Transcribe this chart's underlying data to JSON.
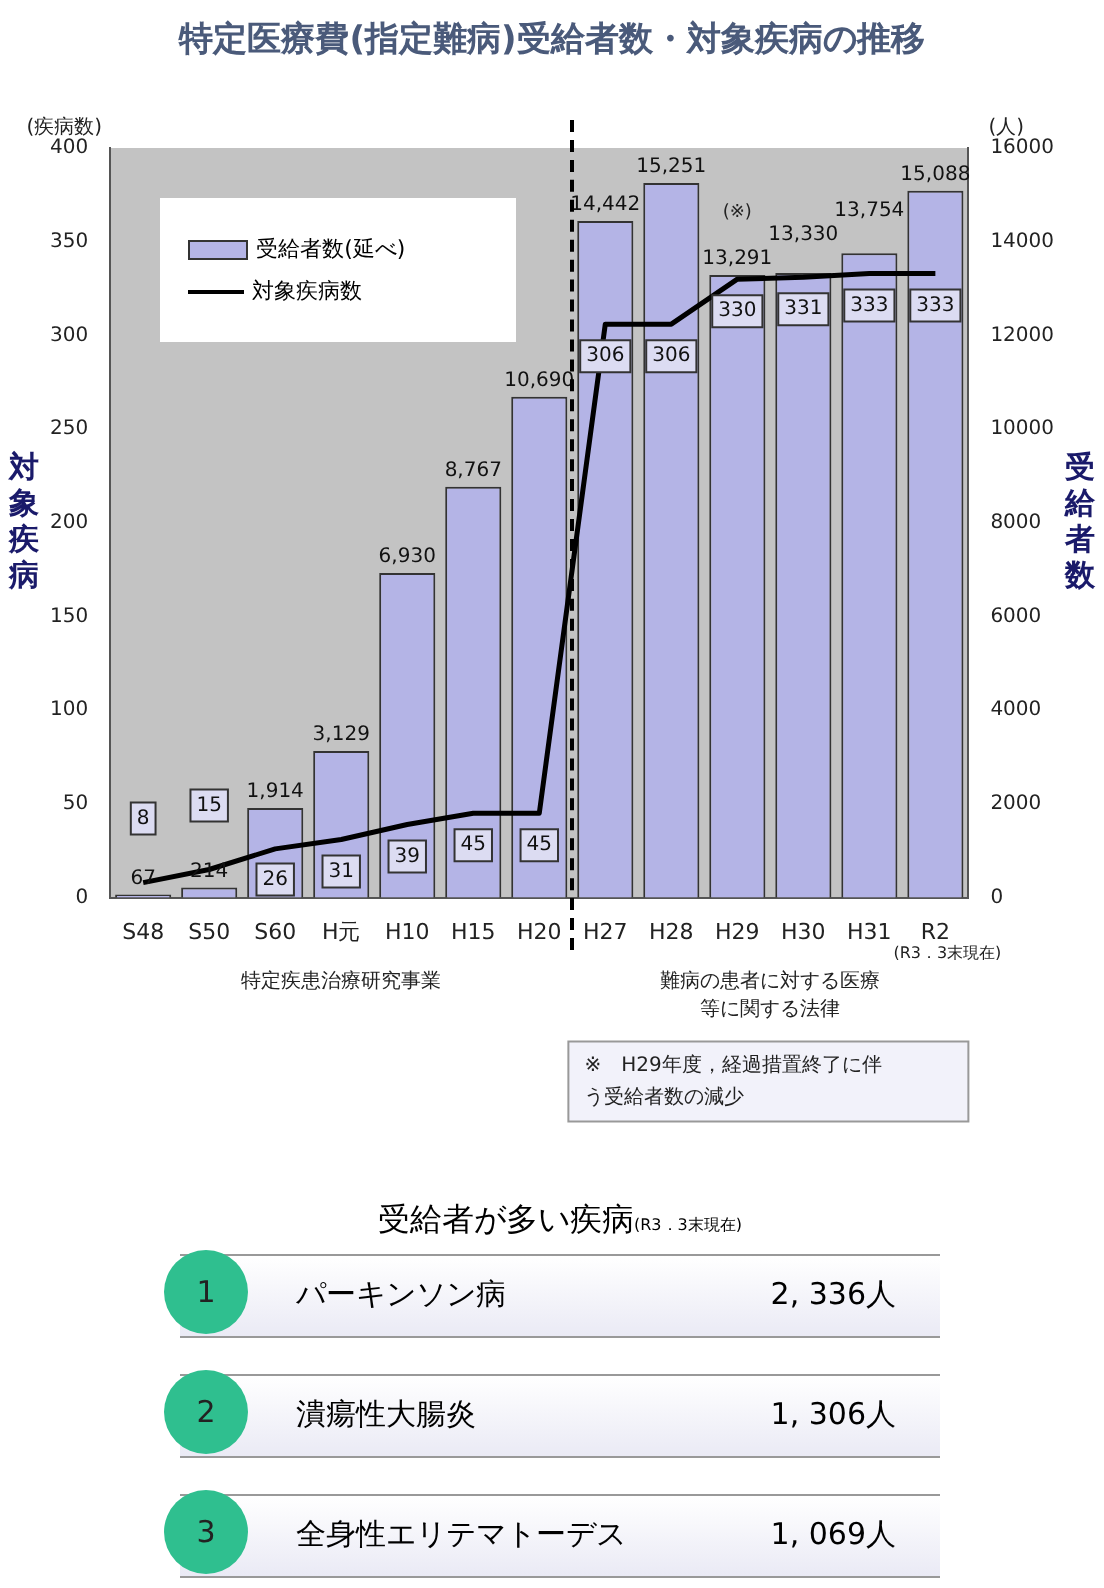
{
  "chart_data": [
    {
      "type": "bar",
      "title": "特定医療費(指定難病)受給者数・対象疾病の推移",
      "ylabel": "対象疾病",
      "y2label": "受給者数",
      "categories": [
        "S48",
        "S50",
        "S60",
        "H元",
        "H10",
        "H15",
        "H20",
        "H27",
        "H28",
        "H29",
        "H30",
        "H31",
        "R2"
      ],
      "series": [
        {
          "name": "受給者数(延べ)",
          "axis": "y2",
          "color": "#b4b4e6",
          "values": [
            67,
            214,
            1914,
            3129,
            6930,
            8767,
            10690,
            14442,
            15251,
            13291,
            13330,
            13754,
            15088
          ],
          "value_labels": [
            "67",
            "214",
            "1,914",
            "3,129",
            "6,930",
            "8,767",
            "10,690",
            "14,442",
            "15,251",
            "13,291",
            "13,330",
            "13,754",
            "15,088"
          ]
        },
        {
          "name": "対象疾病数",
          "type": "line",
          "color": "#000000",
          "values": [
            8,
            15,
            26,
            31,
            39,
            45,
            45,
            306,
            306,
            330,
            331,
            333,
            333
          ],
          "value_labels": [
            "8",
            "15",
            "26",
            "31",
            "39",
            "45",
            "45",
            "306",
            "306",
            "330",
            "331",
            "333",
            "333"
          ]
        }
      ],
      "ylim": [
        0,
        400
      ],
      "yticks": [
        0,
        50,
        100,
        150,
        200,
        250,
        300,
        350,
        400
      ],
      "y2lim": [
        0,
        16000
      ],
      "y2ticks": [
        0,
        2000,
        4000,
        6000,
        8000,
        10000,
        12000,
        14000,
        16000
      ],
      "legend": "top left",
      "marker": "none",
      "annotations": [
        "(疾病数)",
        "(人)",
        "(※)",
        "(R3．3末現在)",
        "特定疾患治療研究事業",
        "難病の患者に対する医療等に関する法律",
        "※　H29年度，経過措置終了に伴う受給者数の減少"
      ]
    },
    {
      "type": "other",
      "title": "受給者が多い疾病",
      "subtitle": "(R3．3末現在)",
      "categories": [
        "パーキンソン病",
        "潰瘍性大腸炎",
        "全身性エリテマトーデス"
      ],
      "annotations": [
        "1",
        "2",
        "3",
        "2, 336人",
        "1, 306人",
        "1, 069人"
      ]
    }
  ]
}
